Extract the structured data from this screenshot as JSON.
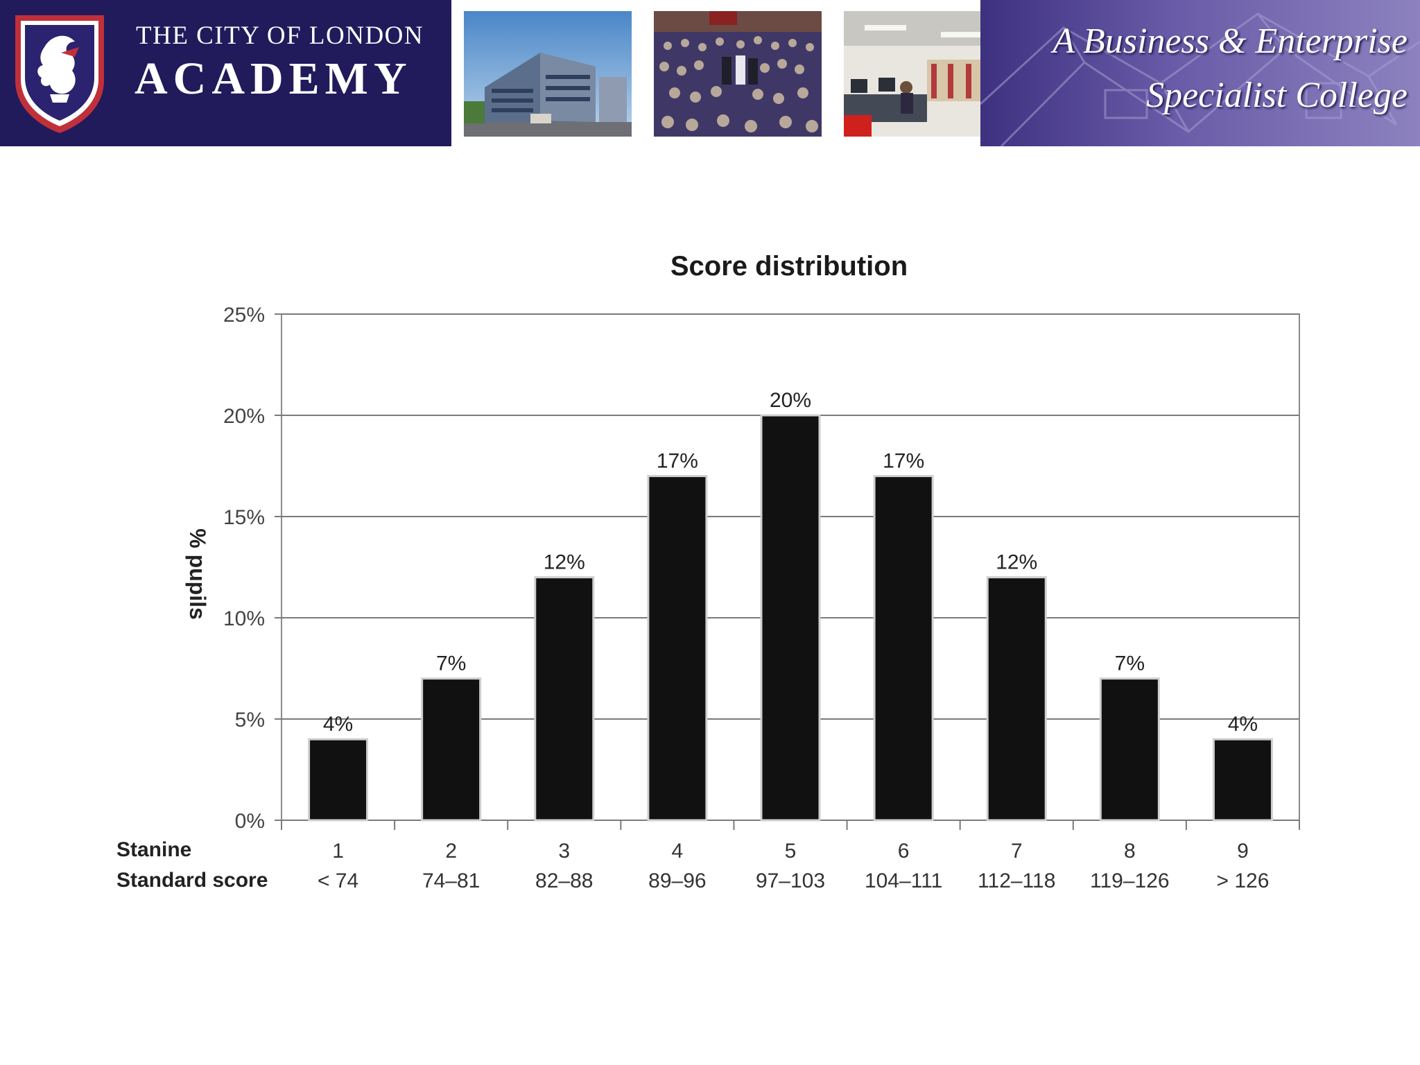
{
  "header": {
    "school_name_line1": "THE CITY OF LONDON",
    "school_name_line2": "ACADEMY",
    "tagline_line1": "A Business & Enterprise",
    "tagline_line2": "Specialist College",
    "photos": [
      "school-building-photo",
      "students-assembly-photo",
      "classroom-photo"
    ],
    "brand_color": "#211a5b",
    "tagline_color": "#5a4d9e"
  },
  "chart_data": {
    "type": "bar",
    "title": "Score distribution",
    "ylabel": "% pupils",
    "ylim": [
      0,
      25
    ],
    "yticks": [
      "0%",
      "5%",
      "10%",
      "15%",
      "20%",
      "25%"
    ],
    "grid": true,
    "bar_color": "#111111",
    "row_titles": [
      "Stanine",
      "Standard score"
    ],
    "categories": [
      "1",
      "2",
      "3",
      "4",
      "5",
      "6",
      "7",
      "8",
      "9"
    ],
    "standard_scores": [
      "< 74",
      "74–81",
      "82–88",
      "89–96",
      "97–103",
      "104–111",
      "112–118",
      "119–126",
      "> 126"
    ],
    "values": [
      4,
      7,
      12,
      17,
      20,
      17,
      12,
      7,
      4
    ],
    "data_labels": [
      "4%",
      "7%",
      "12%",
      "17%",
      "20%",
      "17%",
      "12%",
      "7%",
      "4%"
    ]
  }
}
